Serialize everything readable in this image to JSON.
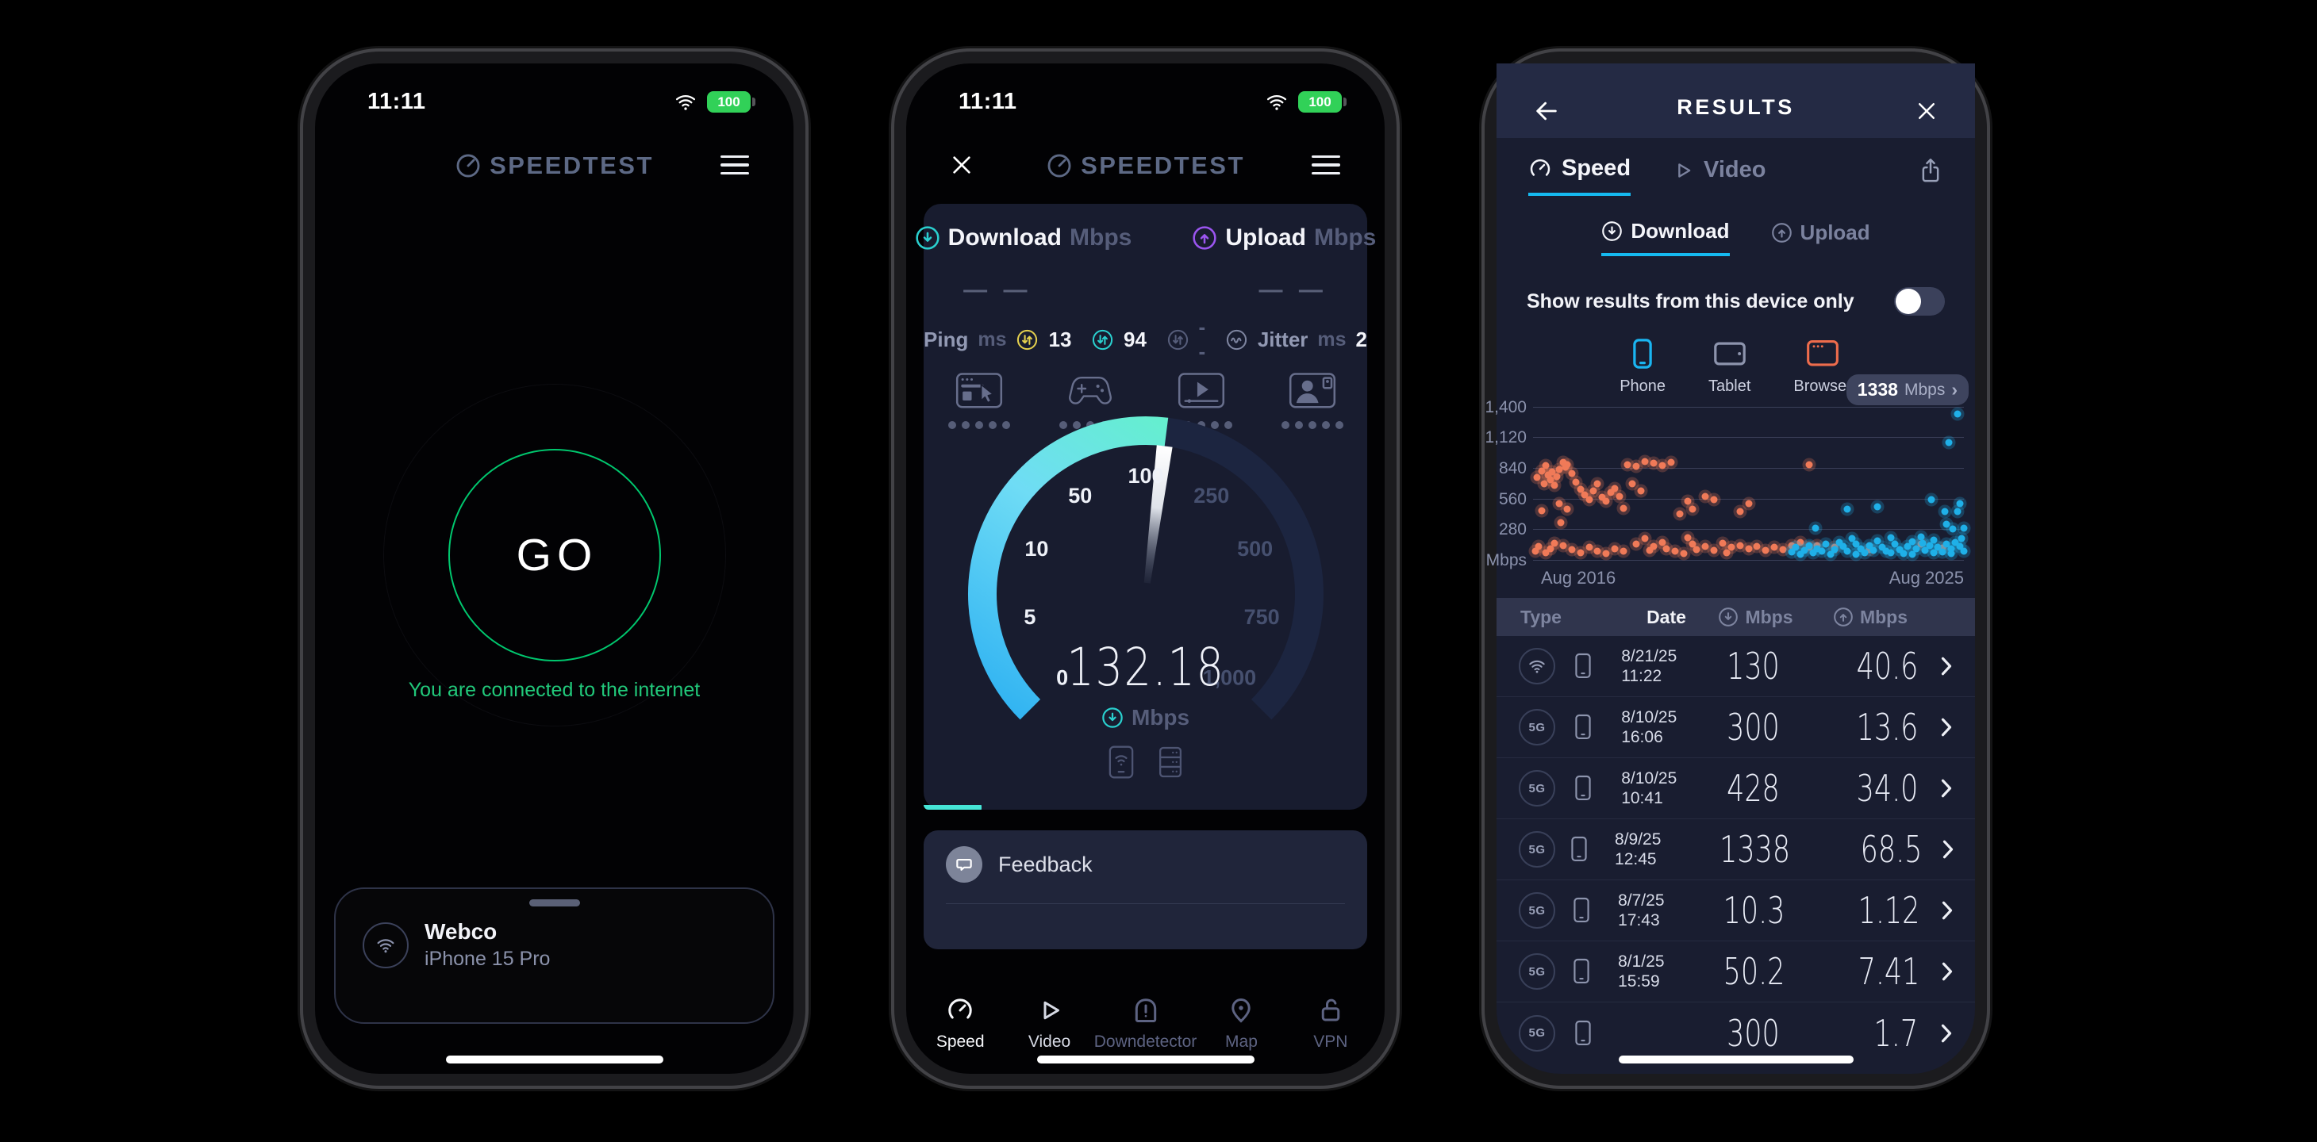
{
  "status_bar": {
    "time": "11:11",
    "battery_level": "100"
  },
  "brand": {
    "name": "SPEEDTEST"
  },
  "phone1": {
    "go_label": "GO",
    "status_message": "You are connected to the internet",
    "connection_card": {
      "ssid": "Webco",
      "device_name": "iPhone 15 Pro"
    }
  },
  "phone2": {
    "metrics": {
      "download_label": "Download",
      "download_unit": "Mbps",
      "download_value": "— —",
      "upload_label": "Upload",
      "upload_unit": "Mbps",
      "upload_value": "— —"
    },
    "ping": {
      "label": "Ping",
      "unit": "ms",
      "idle_value": "13",
      "download_value": "94",
      "upload_value": "--",
      "jitter_label": "Jitter",
      "jitter_unit": "ms",
      "jitter_value": "2"
    },
    "gauge": {
      "value": "132.18",
      "unit": "Mbps",
      "needle_value": 132.18,
      "progress_percent": 13,
      "ticks": [
        "0",
        "5",
        "10",
        "50",
        "100",
        "250",
        "500",
        "750",
        "1,000"
      ],
      "tick_values": [
        0,
        5,
        10,
        50,
        100,
        250,
        500,
        750,
        1000
      ]
    },
    "feedback_label": "Feedback",
    "nav": [
      {
        "label": "Speed"
      },
      {
        "label": "Video"
      },
      {
        "label": "Downdetector"
      },
      {
        "label": "Map"
      },
      {
        "label": "VPN"
      }
    ]
  },
  "phone3": {
    "header_title": "RESULTS",
    "tabs": {
      "speed": "Speed",
      "video": "Video"
    },
    "subtabs": {
      "download": "Download",
      "upload": "Upload"
    },
    "device_toggle_label": "Show results from this device only",
    "filters": [
      {
        "label": "Phone",
        "color": "#1ab5f1"
      },
      {
        "label": "Tablet",
        "color": "#8d94ad"
      },
      {
        "label": "Browser",
        "color": "#ee6c4c"
      }
    ],
    "chart_badge": {
      "value": "1338",
      "unit": "Mbps",
      "chevron": "›"
    },
    "chart_data": {
      "type": "scatter",
      "ylabel": "Mbps",
      "ylim": [
        0,
        1500
      ],
      "yticks": [
        280,
        560,
        840,
        1120,
        1400
      ],
      "ytick_labels": [
        "280",
        "560",
        "840",
        "1,120",
        "1,400"
      ],
      "baseline_label": "Mbps",
      "x_axis": {
        "left_label": "Aug 2016",
        "right_label": "Aug 2025"
      },
      "grid": true,
      "series": [
        {
          "name": "earlier-results",
          "color": "#f07a58",
          "points": [
            [
              0.005,
              90
            ],
            [
              0.01,
              760
            ],
            [
              0.012,
              130
            ],
            [
              0.02,
              820
            ],
            [
              0.02,
              460
            ],
            [
              0.025,
              700
            ],
            [
              0.03,
              870
            ],
            [
              0.03,
              70
            ],
            [
              0.035,
              780
            ],
            [
              0.04,
              740
            ],
            [
              0.04,
              110
            ],
            [
              0.045,
              810
            ],
            [
              0.05,
              690
            ],
            [
              0.05,
              160
            ],
            [
              0.055,
              765
            ],
            [
              0.06,
              830
            ],
            [
              0.06,
              520
            ],
            [
              0.065,
              350
            ],
            [
              0.07,
              900
            ],
            [
              0.07,
              140
            ],
            [
              0.075,
              855
            ],
            [
              0.08,
              880
            ],
            [
              0.08,
              470
            ],
            [
              0.09,
              800
            ],
            [
              0.09,
              100
            ],
            [
              0.1,
              720
            ],
            [
              0.11,
              650
            ],
            [
              0.11,
              75
            ],
            [
              0.12,
              600
            ],
            [
              0.13,
              560
            ],
            [
              0.13,
              120
            ],
            [
              0.14,
              640
            ],
            [
              0.15,
              700
            ],
            [
              0.15,
              90
            ],
            [
              0.16,
              580
            ],
            [
              0.17,
              545
            ],
            [
              0.17,
              65
            ],
            [
              0.18,
              620
            ],
            [
              0.19,
              660
            ],
            [
              0.19,
              110
            ],
            [
              0.2,
              590
            ],
            [
              0.21,
              85
            ],
            [
              0.21,
              480
            ],
            [
              0.22,
              880
            ],
            [
              0.23,
              700
            ],
            [
              0.24,
              860
            ],
            [
              0.24,
              150
            ],
            [
              0.25,
              640
            ],
            [
              0.26,
              905
            ],
            [
              0.26,
              200
            ],
            [
              0.27,
              95
            ],
            [
              0.28,
              890
            ],
            [
              0.28,
              130
            ],
            [
              0.3,
              870
            ],
            [
              0.3,
              170
            ],
            [
              0.31,
              110
            ],
            [
              0.32,
              900
            ],
            [
              0.33,
              90
            ],
            [
              0.34,
              430
            ],
            [
              0.35,
              65
            ],
            [
              0.36,
              210
            ],
            [
              0.36,
              545
            ],
            [
              0.37,
              470
            ],
            [
              0.37,
              150
            ],
            [
              0.38,
              100
            ],
            [
              0.4,
              585
            ],
            [
              0.4,
              130
            ],
            [
              0.42,
              555
            ],
            [
              0.42,
              95
            ],
            [
              0.44,
              160
            ],
            [
              0.45,
              75
            ],
            [
              0.46,
              120
            ],
            [
              0.48,
              140
            ],
            [
              0.48,
              450
            ],
            [
              0.5,
              110
            ],
            [
              0.5,
              520
            ],
            [
              0.52,
              130
            ],
            [
              0.54,
              95
            ],
            [
              0.56,
              120
            ],
            [
              0.58,
              105
            ],
            [
              0.6,
              140
            ],
            [
              0.62,
              170
            ],
            [
              0.64,
              880
            ],
            [
              0.64,
              120
            ],
            [
              0.66,
              140
            ],
            [
              0.7,
              120
            ],
            [
              0.78,
              100
            ],
            [
              0.9,
              150
            ],
            [
              0.95,
              115
            ]
          ]
        },
        {
          "name": "recent-results",
          "color": "#1fb0e8",
          "points": [
            [
              0.6,
              80
            ],
            [
              0.61,
              120
            ],
            [
              0.62,
              60
            ],
            [
              0.63,
              95
            ],
            [
              0.64,
              140
            ],
            [
              0.65,
              70
            ],
            [
              0.655,
              300
            ],
            [
              0.66,
              110
            ],
            [
              0.67,
              85
            ],
            [
              0.68,
              150
            ],
            [
              0.69,
              60
            ],
            [
              0.7,
              100
            ],
            [
              0.71,
              170
            ],
            [
              0.72,
              130
            ],
            [
              0.73,
              90
            ],
            [
              0.73,
              470
            ],
            [
              0.74,
              200
            ],
            [
              0.75,
              155
            ],
            [
              0.75,
              60
            ],
            [
              0.76,
              110
            ],
            [
              0.77,
              75
            ],
            [
              0.78,
              135
            ],
            [
              0.79,
              95
            ],
            [
              0.8,
              180
            ],
            [
              0.8,
              490
            ],
            [
              0.81,
              120
            ],
            [
              0.82,
              85
            ],
            [
              0.83,
              210
            ],
            [
              0.83,
              70
            ],
            [
              0.84,
              150
            ],
            [
              0.85,
              100
            ],
            [
              0.86,
              65
            ],
            [
              0.87,
              130
            ],
            [
              0.88,
              175
            ],
            [
              0.88,
              60
            ],
            [
              0.89,
              110
            ],
            [
              0.9,
              220
            ],
            [
              0.905,
              160
            ],
            [
              0.91,
              95
            ],
            [
              0.92,
              140
            ],
            [
              0.925,
              560
            ],
            [
              0.93,
              190
            ],
            [
              0.93,
              75
            ],
            [
              0.94,
              120
            ],
            [
              0.95,
              80
            ],
            [
              0.955,
              450
            ],
            [
              0.96,
              150
            ],
            [
              0.96,
              330
            ],
            [
              0.965,
              1080
            ],
            [
              0.97,
              110
            ],
            [
              0.97,
              65
            ],
            [
              0.975,
              290
            ],
            [
              0.98,
              170
            ],
            [
              0.985,
              1338
            ],
            [
              0.985,
              450
            ],
            [
              0.99,
              130
            ],
            [
              0.99,
              520
            ],
            [
              0.995,
              200
            ],
            [
              1.0,
              90
            ],
            [
              1.0,
              300
            ]
          ]
        }
      ]
    },
    "table": {
      "headers": {
        "type": "Type",
        "date": "Date",
        "download": "Mbps",
        "upload": "Mbps"
      },
      "rows": [
        {
          "type": "wifi",
          "date": "8/21/25",
          "time": "11:22",
          "download": "130",
          "upload": "40.6"
        },
        {
          "type": "5G",
          "date": "8/10/25",
          "time": "16:06",
          "download": "300",
          "upload": "13.6"
        },
        {
          "type": "5G",
          "date": "8/10/25",
          "time": "10:41",
          "download": "428",
          "upload": "34.0"
        },
        {
          "type": "5G",
          "date": "8/9/25",
          "time": "12:45",
          "download": "1338",
          "upload": "68.5"
        },
        {
          "type": "5G",
          "date": "8/7/25",
          "time": "17:43",
          "download": "10.3",
          "upload": "1.12"
        },
        {
          "type": "5G",
          "date": "8/1/25",
          "time": "15:59",
          "download": "50.2",
          "upload": "7.41"
        },
        {
          "type": "5G",
          "date": "",
          "time": "",
          "download": "300",
          "upload": "1.7"
        }
      ]
    }
  },
  "colors": {
    "accent_cyan": "#15b9f0",
    "accent_teal": "#46e5d7",
    "accent_green": "#00c76e",
    "accent_purple": "#9b55f0",
    "accent_yellow": "#e3cf4e",
    "battery_green": "#31d158"
  }
}
